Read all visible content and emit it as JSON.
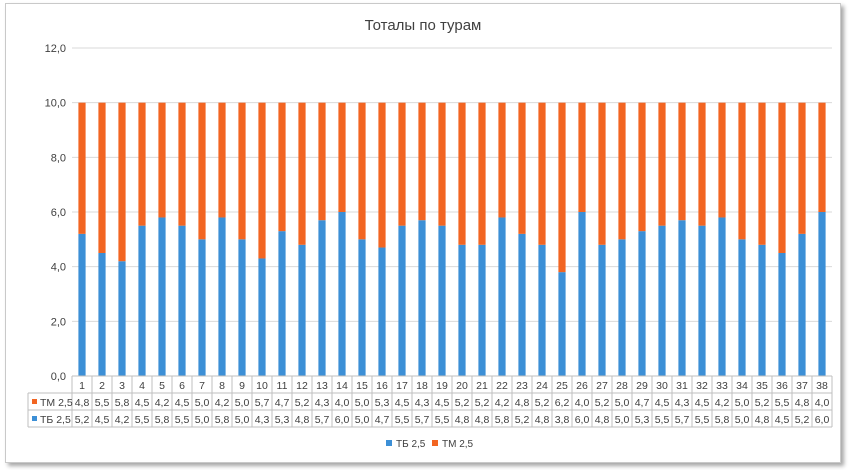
{
  "chart_data": {
    "type": "bar",
    "stacked": true,
    "title": "Тоталы по турам",
    "categories": [
      "1",
      "2",
      "3",
      "4",
      "5",
      "6",
      "7",
      "8",
      "9",
      "10",
      "11",
      "12",
      "13",
      "14",
      "15",
      "16",
      "17",
      "18",
      "19",
      "20",
      "21",
      "22",
      "23",
      "24",
      "25",
      "26",
      "27",
      "28",
      "29",
      "30",
      "31",
      "32",
      "33",
      "34",
      "35",
      "36",
      "37",
      "38"
    ],
    "series": [
      {
        "name": "ТБ 2,5",
        "color": "#3c8fd6",
        "values": [
          5.2,
          4.5,
          4.2,
          5.5,
          5.8,
          5.5,
          5.0,
          5.8,
          5.0,
          4.3,
          5.3,
          4.8,
          5.7,
          6.0,
          5.0,
          4.7,
          5.5,
          5.7,
          5.5,
          4.8,
          4.8,
          5.8,
          5.2,
          4.8,
          3.8,
          6.0,
          4.8,
          5.0,
          5.3,
          5.5,
          5.7,
          5.5,
          5.8,
          5.0,
          4.8,
          4.5,
          5.2,
          6.0
        ],
        "labels": [
          "5,2",
          "4,5",
          "4,2",
          "5,5",
          "5,8",
          "5,5",
          "5,0",
          "5,8",
          "5,0",
          "4,3",
          "5,3",
          "4,8",
          "5,7",
          "6,0",
          "5,0",
          "4,7",
          "5,5",
          "5,7",
          "5,5",
          "4,8",
          "4,8",
          "5,8",
          "5,2",
          "4,8",
          "3,8",
          "6,0",
          "4,8",
          "5,0",
          "5,3",
          "5,5",
          "5,7",
          "5,5",
          "5,8",
          "5,0",
          "4,8",
          "4,5",
          "5,2",
          "6,0"
        ]
      },
      {
        "name": "ТМ 2,5",
        "color": "#f26522",
        "values": [
          4.8,
          5.5,
          5.8,
          4.5,
          4.2,
          4.5,
          5.0,
          4.2,
          5.0,
          5.7,
          4.7,
          5.2,
          4.3,
          4.0,
          5.0,
          5.3,
          4.5,
          4.3,
          4.5,
          5.2,
          5.2,
          4.2,
          4.8,
          5.2,
          6.2,
          4.0,
          5.2,
          5.0,
          4.7,
          4.5,
          4.3,
          4.5,
          4.2,
          5.0,
          5.2,
          5.5,
          4.8,
          4.0
        ],
        "labels": [
          "4,8",
          "5,5",
          "5,8",
          "4,5",
          "4,2",
          "4,5",
          "5,0",
          "4,2",
          "5,0",
          "5,7",
          "4,7",
          "5,2",
          "4,3",
          "4,0",
          "5,0",
          "5,3",
          "4,5",
          "4,3",
          "4,5",
          "5,2",
          "5,2",
          "4,2",
          "4,8",
          "5,2",
          "6,2",
          "4,0",
          "5,2",
          "5,0",
          "4,7",
          "4,5",
          "4,3",
          "4,5",
          "4,2",
          "5,0",
          "5,2",
          "5,5",
          "4,8",
          "4,0"
        ]
      }
    ],
    "ylim": [
      0,
      12
    ],
    "yticks": [
      0,
      2,
      4,
      6,
      8,
      10,
      12
    ],
    "ytick_labels": [
      "0,0",
      "2,0",
      "4,0",
      "6,0",
      "8,0",
      "10,0",
      "12,0"
    ],
    "grid": true,
    "data_table": true,
    "legend_position": "bottom"
  }
}
